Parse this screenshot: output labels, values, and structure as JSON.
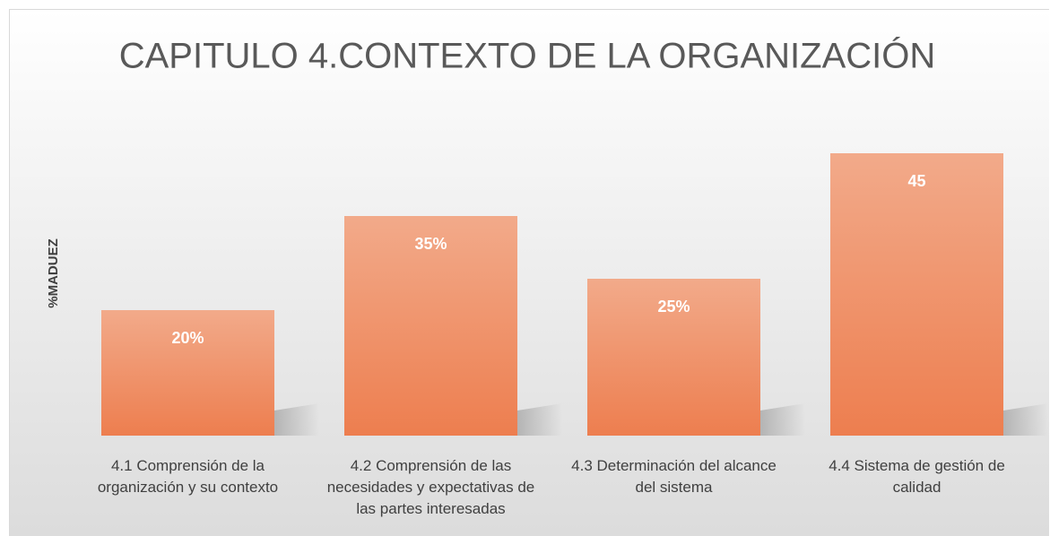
{
  "chart_data": {
    "type": "bar",
    "title": "CAPITULO 4.CONTEXTO DE LA ORGANIZACIÓN",
    "y_label": "%MADUEZ",
    "categories": [
      "4.1 Comprensión de la organización  y su contexto",
      "4.2 Comprensión de las necesidades y expectativas de las partes interesadas",
      "4.3 Determinación del alcance del sistema",
      "4.4 Sistema de gestión de calidad"
    ],
    "values": [
      20,
      35,
      25,
      45
    ],
    "value_labels": [
      "20%",
      "35%",
      "25%",
      "45"
    ],
    "color": "#ef8a5e"
  }
}
